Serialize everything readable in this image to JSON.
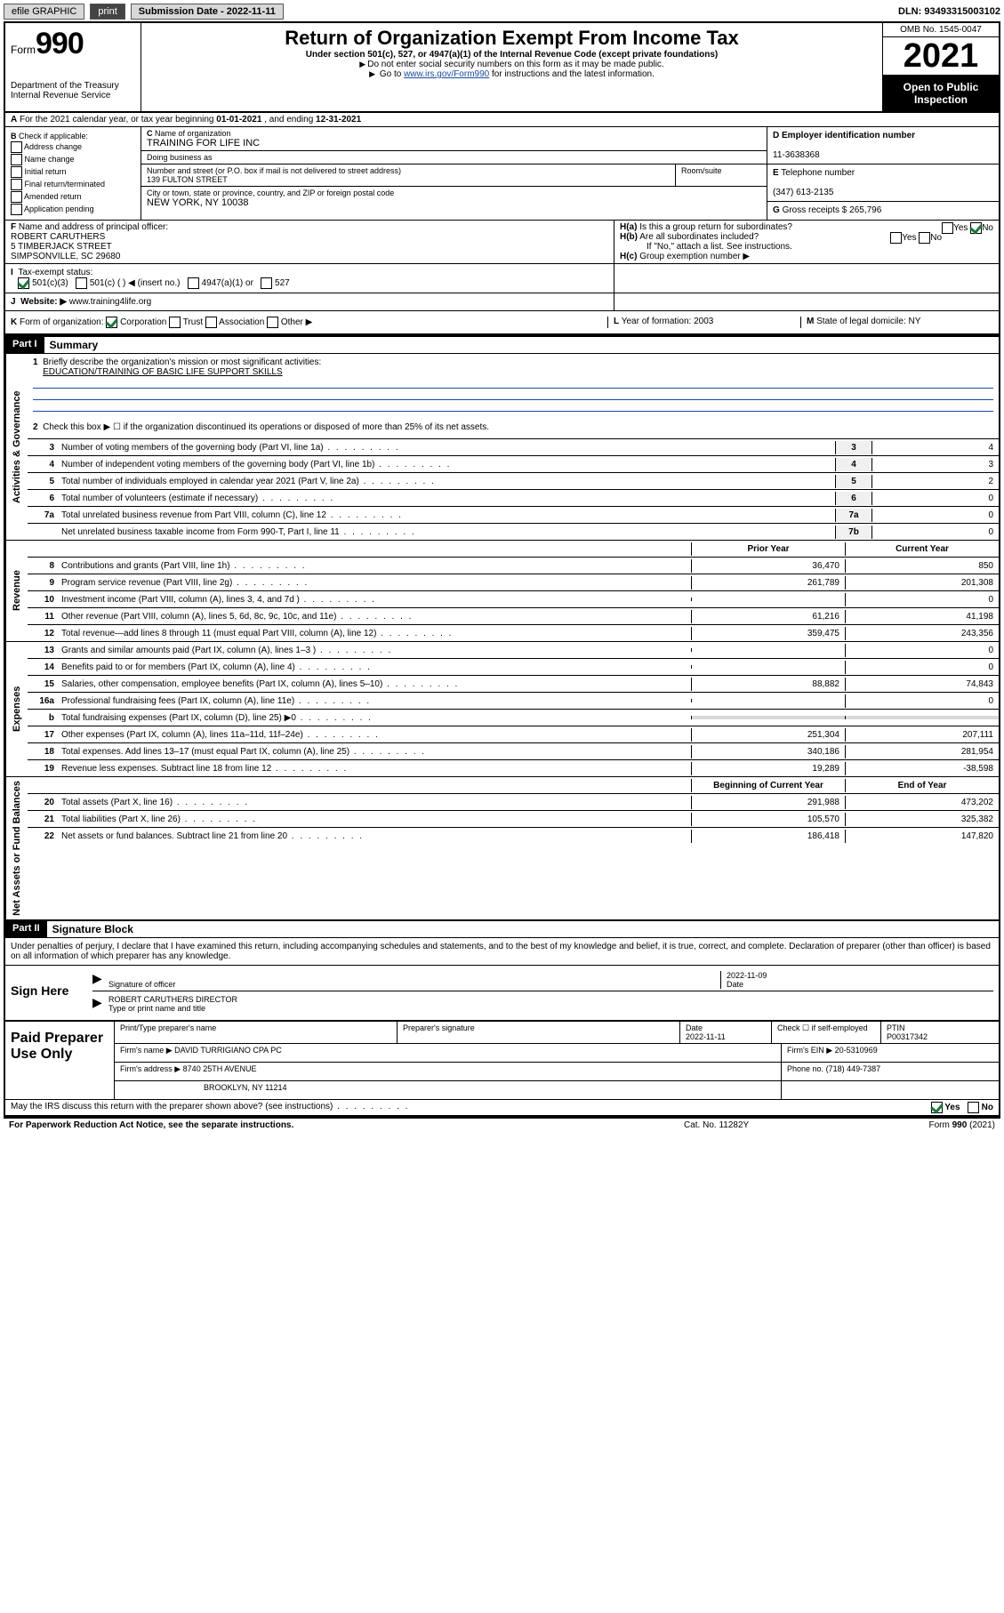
{
  "topbar": {
    "efile": "efile GRAPHIC",
    "print": "print",
    "subdate_label": "Submission Date - 2022-11-11",
    "dln": "DLN: 93493315003102"
  },
  "header": {
    "form_prefix": "Form",
    "form_num": "990",
    "dept": "Department of the Treasury",
    "irs": "Internal Revenue Service",
    "title": "Return of Organization Exempt From Income Tax",
    "sub": "Under section 501(c), 527, or 4947(a)(1) of the Internal Revenue Code (except private foundations)",
    "note1": "Do not enter social security numbers on this form as it may be made public.",
    "note2_pre": "Go to ",
    "note2_link": "www.irs.gov/Form990",
    "note2_post": " for instructions and the latest information.",
    "omb": "OMB No. 1545-0047",
    "year": "2021",
    "open": "Open to Public Inspection"
  },
  "rowA": {
    "text_pre": "For the 2021 calendar year, or tax year beginning ",
    "begin": "01-01-2021",
    "mid": " , and ending ",
    "end": "12-31-2021"
  },
  "B": {
    "label": "Check if applicable:",
    "items": [
      "Address change",
      "Name change",
      "Initial return",
      "Final return/terminated",
      "Amended return",
      "Application pending"
    ]
  },
  "C": {
    "name_label": "Name of organization",
    "name": "TRAINING FOR LIFE INC",
    "dba_label": "Doing business as",
    "dba": "",
    "street_label": "Number and street (or P.O. box if mail is not delivered to street address)",
    "street": "139 FULTON STREET",
    "room_label": "Room/suite",
    "city_label": "City or town, state or province, country, and ZIP or foreign postal code",
    "city": "NEW YORK, NY  10038"
  },
  "D": {
    "ein_label": "Employer identification number",
    "ein": "11-3638368",
    "tel_label": "Telephone number",
    "tel": "(347) 613-2135",
    "gross_label": "Gross receipts $",
    "gross": "265,796"
  },
  "F": {
    "label": "Name and address of principal officer:",
    "name": "ROBERT CARUTHERS",
    "street": "5 TIMBERJACK STREET",
    "city": "SIMPSONVILLE, SC  29680"
  },
  "H": {
    "a": "Is this a group return for subordinates?",
    "b": "Are all subordinates included?",
    "note": "If \"No,\" attach a list. See instructions.",
    "c": "Group exemption number ▶",
    "yes": "Yes",
    "no": "No"
  },
  "I": {
    "label": "Tax-exempt status:",
    "opt1": "501(c)(3)",
    "opt2": "501(c) (  ) ◀ (insert no.)",
    "opt3": "4947(a)(1) or",
    "opt4": "527"
  },
  "J": {
    "label": "Website: ▶",
    "val": "www.training4life.org"
  },
  "K": {
    "label": "Form of organization:",
    "opts": [
      "Corporation",
      "Trust",
      "Association",
      "Other ▶"
    ],
    "L_label": "Year of formation:",
    "L_val": "2003",
    "M_label": "State of legal domicile:",
    "M_val": "NY"
  },
  "part1": {
    "hdr": "Part I",
    "title": "Summary",
    "l1_label": "Briefly describe the organization's mission or most significant activities:",
    "l1_val": "EDUCATION/TRAINING OF BASIC LIFE SUPPORT SKILLS",
    "l2": "Check this box ▶ ☐  if the organization discontinued its operations or disposed of more than 25% of its net assets.",
    "lines_gov": [
      {
        "n": "3",
        "t": "Number of voting members of the governing body (Part VI, line 1a)",
        "box": "3",
        "v": "4"
      },
      {
        "n": "4",
        "t": "Number of independent voting members of the governing body (Part VI, line 1b)",
        "box": "4",
        "v": "3"
      },
      {
        "n": "5",
        "t": "Total number of individuals employed in calendar year 2021 (Part V, line 2a)",
        "box": "5",
        "v": "2"
      },
      {
        "n": "6",
        "t": "Total number of volunteers (estimate if necessary)",
        "box": "6",
        "v": "0"
      },
      {
        "n": "7a",
        "t": "Total unrelated business revenue from Part VIII, column (C), line 12",
        "box": "7a",
        "v": "0"
      },
      {
        "n": "",
        "t": "Net unrelated business taxable income from Form 990-T, Part I, line 11",
        "box": "7b",
        "v": "0"
      }
    ],
    "col_prior": "Prior Year",
    "col_curr": "Current Year",
    "rev": [
      {
        "n": "8",
        "t": "Contributions and grants (Part VIII, line 1h)",
        "p": "36,470",
        "c": "850"
      },
      {
        "n": "9",
        "t": "Program service revenue (Part VIII, line 2g)",
        "p": "261,789",
        "c": "201,308"
      },
      {
        "n": "10",
        "t": "Investment income (Part VIII, column (A), lines 3, 4, and 7d )",
        "p": "",
        "c": "0"
      },
      {
        "n": "11",
        "t": "Other revenue (Part VIII, column (A), lines 5, 6d, 8c, 9c, 10c, and 11e)",
        "p": "61,216",
        "c": "41,198"
      },
      {
        "n": "12",
        "t": "Total revenue—add lines 8 through 11 (must equal Part VIII, column (A), line 12)",
        "p": "359,475",
        "c": "243,356"
      }
    ],
    "exp": [
      {
        "n": "13",
        "t": "Grants and similar amounts paid (Part IX, column (A), lines 1–3 )",
        "p": "",
        "c": "0"
      },
      {
        "n": "14",
        "t": "Benefits paid to or for members (Part IX, column (A), line 4)",
        "p": "",
        "c": "0"
      },
      {
        "n": "15",
        "t": "Salaries, other compensation, employee benefits (Part IX, column (A), lines 5–10)",
        "p": "88,882",
        "c": "74,843"
      },
      {
        "n": "16a",
        "t": "Professional fundraising fees (Part IX, column (A), line 11e)",
        "p": "",
        "c": "0"
      },
      {
        "n": "b",
        "t": "Total fundraising expenses (Part IX, column (D), line 25) ▶0",
        "p": "grey",
        "c": "grey"
      },
      {
        "n": "17",
        "t": "Other expenses (Part IX, column (A), lines 11a–11d, 11f–24e)",
        "p": "251,304",
        "c": "207,111"
      },
      {
        "n": "18",
        "t": "Total expenses. Add lines 13–17 (must equal Part IX, column (A), line 25)",
        "p": "340,186",
        "c": "281,954"
      },
      {
        "n": "19",
        "t": "Revenue less expenses. Subtract line 18 from line 12",
        "p": "19,289",
        "c": "-38,598"
      }
    ],
    "col_boy": "Beginning of Current Year",
    "col_eoy": "End of Year",
    "net": [
      {
        "n": "20",
        "t": "Total assets (Part X, line 16)",
        "p": "291,988",
        "c": "473,202"
      },
      {
        "n": "21",
        "t": "Total liabilities (Part X, line 26)",
        "p": "105,570",
        "c": "325,382"
      },
      {
        "n": "22",
        "t": "Net assets or fund balances. Subtract line 21 from line 20",
        "p": "186,418",
        "c": "147,820"
      }
    ],
    "side_gov": "Activities & Governance",
    "side_rev": "Revenue",
    "side_exp": "Expenses",
    "side_net": "Net Assets or Fund Balances"
  },
  "part2": {
    "hdr": "Part II",
    "title": "Signature Block",
    "decl": "Under penalties of perjury, I declare that I have examined this return, including accompanying schedules and statements, and to the best of my knowledge and belief, it is true, correct, and complete. Declaration of preparer (other than officer) is based on all information of which preparer has any knowledge."
  },
  "sign": {
    "label": "Sign Here",
    "sig_of_officer": "Signature of officer",
    "date": "2022-11-09",
    "date_label": "Date",
    "name": "ROBERT CARUTHERS  DIRECTOR",
    "name_label": "Type or print name and title"
  },
  "paid": {
    "label": "Paid Preparer Use Only",
    "h1": "Print/Type preparer's name",
    "h2": "Preparer's signature",
    "h3": "Date",
    "h3v": "2022-11-11",
    "h4": "Check ☐ if self-employed",
    "h5": "PTIN",
    "h5v": "P00317342",
    "firm_label": "Firm's name   ▶",
    "firm": "DAVID TURRIGIANO CPA PC",
    "ein_label": "Firm's EIN ▶",
    "ein": "20-5310969",
    "addr_label": "Firm's address ▶",
    "addr1": "8740 25TH AVENUE",
    "addr2": "BROOKLYN, NY  11214",
    "phone_label": "Phone no.",
    "phone": "(718) 449-7387"
  },
  "discuss": {
    "q": "May the IRS discuss this return with the preparer shown above? (see instructions)",
    "yes": "Yes",
    "no": "No"
  },
  "footer": {
    "l": "For Paperwork Reduction Act Notice, see the separate instructions.",
    "m": "Cat. No. 11282Y",
    "r": "Form 990 (2021)"
  },
  "labels": {
    "A": "A",
    "B": "B",
    "C": "C",
    "D": "D",
    "E": "E",
    "F": "F",
    "G": "G",
    "Ha": "H(a)",
    "Hb": "H(b)",
    "Hc": "H(c)",
    "I": "I",
    "J": "J",
    "K": "K",
    "L": "L",
    "M": "M"
  }
}
